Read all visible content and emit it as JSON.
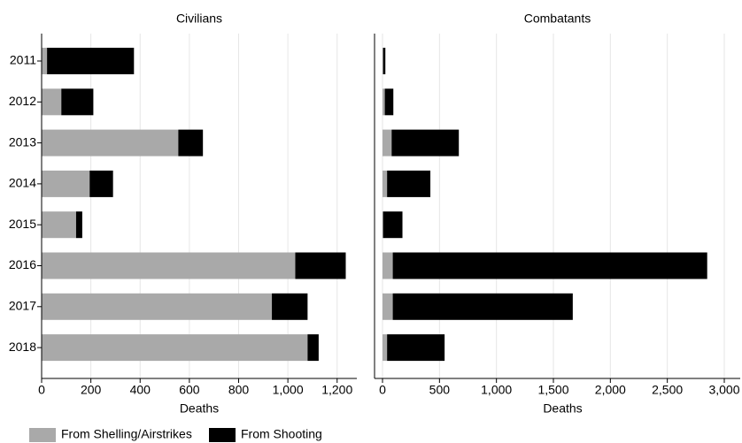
{
  "chart_data": [
    {
      "type": "bar",
      "orientation": "horizontal",
      "stacked": true,
      "title": "Civilians",
      "xlabel": "Deaths",
      "categories": [
        "2011",
        "2012",
        "2013",
        "2014",
        "2015",
        "2016",
        "2017",
        "2018"
      ],
      "series": [
        {
          "name": "From Shelling/Airstrikes",
          "color": "#a9a9a9",
          "values": [
            22,
            80,
            555,
            195,
            140,
            1030,
            935,
            1080
          ]
        },
        {
          "name": "From Shooting",
          "color": "#000000",
          "values": [
            353,
            130,
            100,
            95,
            25,
            205,
            145,
            45
          ]
        }
      ],
      "xlim": [
        0,
        1280
      ],
      "xticks": [
        0,
        200,
        400,
        600,
        800,
        {
          "value": 1000,
          "label": "1,000"
        },
        {
          "value": 1200,
          "label": "1,200"
        }
      ],
      "grid": true
    },
    {
      "type": "bar",
      "orientation": "horizontal",
      "stacked": true,
      "title": "Combatants",
      "xlabel": "Deaths",
      "series": [
        {
          "name": "From Shelling/Airstrikes",
          "color": "#a9a9a9",
          "values": [
            5,
            20,
            80,
            40,
            5,
            90,
            90,
            40
          ]
        },
        {
          "name": "From Shooting",
          "color": "#000000",
          "values": [
            20,
            75,
            590,
            380,
            170,
            2760,
            1580,
            505
          ]
        }
      ],
      "xlim": [
        -70,
        3140
      ],
      "xticks": [
        0,
        500,
        {
          "value": 1000,
          "label": "1,000"
        },
        {
          "value": 1500,
          "label": "1,500"
        },
        {
          "value": 2000,
          "label": "2,000"
        },
        {
          "value": 2500,
          "label": "2,500"
        },
        {
          "value": 3000,
          "label": "3,000"
        }
      ],
      "grid": true
    }
  ]
}
